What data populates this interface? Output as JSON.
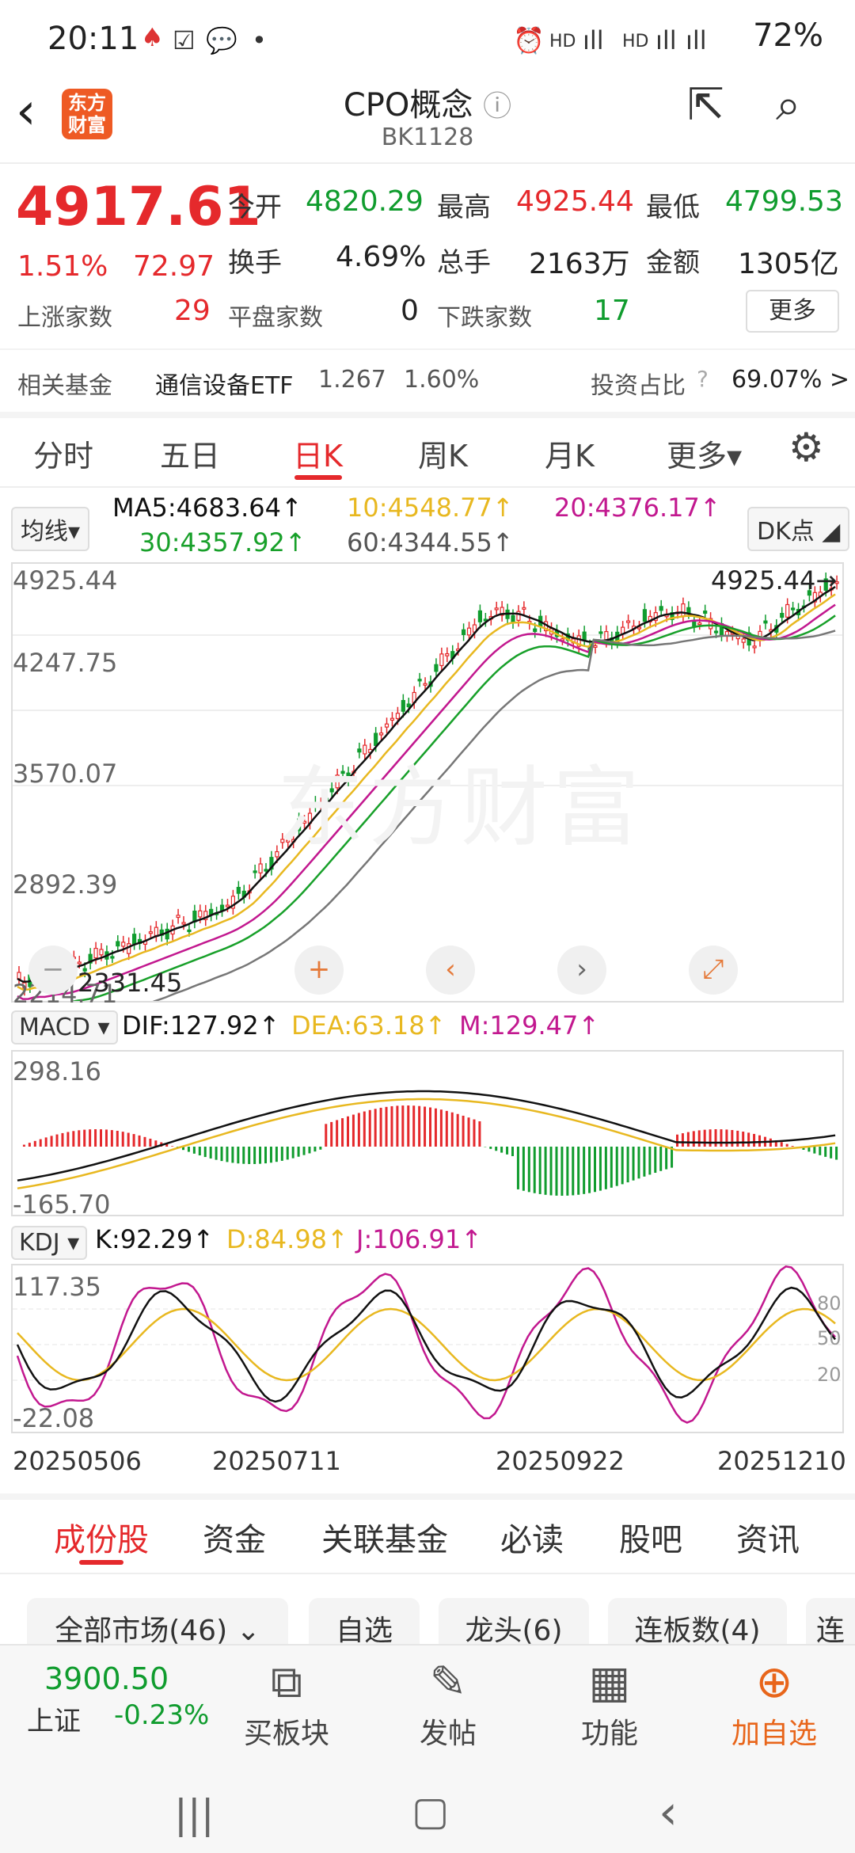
{
  "status": {
    "time": "20:11",
    "icons": [
      "alarm-icon",
      "hd-icon",
      "4g-icon",
      "signal-icon",
      "hd-icon",
      "4g-icon",
      "signal-icon"
    ],
    "battery": "72%"
  },
  "header": {
    "title": "CPO概念",
    "subtitle": "BK1128",
    "logo_text": "东方财富",
    "info_glyph": "ⓘ"
  },
  "quote": {
    "price": "4917.61",
    "pct": "1.51%",
    "change": "72.97",
    "open_label": "今开",
    "open": "4820.29",
    "high_label": "最高",
    "high": "4925.44",
    "low_label": "最低",
    "low": "4799.53",
    "turnover_label": "换手",
    "turnover": "4.69%",
    "volume_label": "总手",
    "volume": "2163万",
    "amount_label": "金额",
    "amount": "1305亿",
    "up_label": "上涨家数",
    "up": "29",
    "flat_label": "平盘家数",
    "flat": "0",
    "down_label": "下跌家数",
    "down": "17",
    "more": "更多"
  },
  "fund": {
    "label": "相关基金",
    "name": "通信设备ETF",
    "price": "1.267",
    "pct": "1.60%",
    "ratio_label": "投资占比",
    "ratio": "69.07% >"
  },
  "tabs": [
    {
      "label": "分时"
    },
    {
      "label": "五日"
    },
    {
      "label": "日K"
    },
    {
      "label": "周K"
    },
    {
      "label": "月K"
    },
    {
      "label": "更多▾"
    }
  ],
  "ma": {
    "selector": "均线▾",
    "ma5": "MA5:4683.64↑",
    "ma10": "10:4548.77↑",
    "ma20": "20:4376.17↑",
    "ma30": "30:4357.92↑",
    "ma60": "60:4344.55↑",
    "dk": "DK点 ◢"
  },
  "kline": {
    "y_labels": [
      "4925.44",
      "4247.75",
      "3570.07",
      "2892.39",
      "2214.71"
    ],
    "high_marker": "4925.44→",
    "low_marker": "2331.45",
    "colors": {
      "up": "#e5292c",
      "down": "#109c2e",
      "ma5": "#111111",
      "ma10": "#e8b820",
      "ma20": "#c2188f",
      "ma30": "#18a02a",
      "ma60": "#777777"
    }
  },
  "macd": {
    "selector": "MACD ▾",
    "dif": "DIF:127.92↑",
    "dea": "DEA:63.18↑",
    "m": "M:129.47↑",
    "y_top": "298.16",
    "y_bottom": "-165.70"
  },
  "kdj": {
    "selector": "KDJ ▾",
    "k": "K:92.29↑",
    "d": "D:84.98↑",
    "j": "J:106.91↑",
    "y_top": "117.35",
    "y_bottom": "-22.08",
    "levels": [
      "80",
      "50",
      "20"
    ]
  },
  "dates": [
    "20250506",
    "20250711",
    "20250922",
    "20251210"
  ],
  "bottom_tabs": [
    {
      "label": "成份股"
    },
    {
      "label": "资金"
    },
    {
      "label": "关联基金"
    },
    {
      "label": "必读"
    },
    {
      "label": "股吧"
    },
    {
      "label": "资讯"
    }
  ],
  "filters": [
    {
      "label": "全部市场(46) ⌄"
    },
    {
      "label": "自选"
    },
    {
      "label": "龙头(6)"
    },
    {
      "label": "连板数(4)"
    },
    {
      "label": "连"
    }
  ],
  "index": {
    "value": "3900.50",
    "name": "上证",
    "pct": "-0.23%"
  },
  "bottom_bar": [
    {
      "label": "买板块",
      "icon": "⧉"
    },
    {
      "label": "发帖",
      "icon": "✎"
    },
    {
      "label": "功能",
      "icon": "▦"
    },
    {
      "label": "加自选",
      "icon": "⊕"
    }
  ],
  "watermark": "东方财富"
}
